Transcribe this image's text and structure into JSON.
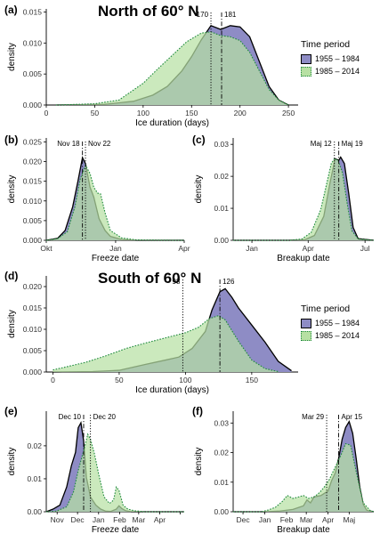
{
  "colors": {
    "period1_fill": "#8e8cc5",
    "period1_line": "#000000",
    "period2_fill": "#b7e0a3",
    "period2_line": "#1e8a3c"
  },
  "legend": {
    "title": "Time period",
    "items": [
      "1955 – 1984",
      "1985 – 2014"
    ]
  },
  "panels": [
    {
      "id": "a",
      "tag": "(a)",
      "region_title": "North of 60° N"
    },
    {
      "id": "b",
      "tag": "(b)"
    },
    {
      "id": "c",
      "tag": "(c)"
    },
    {
      "id": "d",
      "tag": "(d)",
      "region_title": "South of 60° N"
    },
    {
      "id": "e",
      "tag": "(e)"
    },
    {
      "id": "f",
      "tag": "(f)"
    }
  ],
  "chart_data": [
    {
      "id": "a",
      "type": "area",
      "xlabel": "Ice duration (days)",
      "ylabel": "density",
      "xlim": [
        0,
        260
      ],
      "ylim": [
        0,
        0.0155
      ],
      "xticks": [
        0,
        50,
        100,
        150,
        200,
        250
      ],
      "xtick_labels": [
        "0",
        "50",
        "100",
        "150",
        "200",
        "250"
      ],
      "yticks": [
        0,
        0.005,
        0.01,
        0.015
      ],
      "ytick_labels": [
        "0.000",
        "0.005",
        "0.010",
        "0.015"
      ],
      "series": [
        {
          "name": "1955 – 1984",
          "x": [
            10,
            60,
            90,
            110,
            125,
            140,
            150,
            160,
            170,
            180,
            190,
            200,
            210,
            220,
            230,
            240,
            250
          ],
          "y": [
            0,
            0.0001,
            0.0006,
            0.0016,
            0.003,
            0.0055,
            0.0078,
            0.0105,
            0.0128,
            0.0122,
            0.0128,
            0.0126,
            0.011,
            0.007,
            0.003,
            0.0008,
            0
          ]
        },
        {
          "name": "1985 – 2014",
          "x": [
            10,
            50,
            75,
            100,
            115,
            130,
            145,
            160,
            170,
            180,
            190,
            200,
            210,
            220,
            230,
            240,
            250
          ],
          "y": [
            0,
            0.0002,
            0.0008,
            0.0035,
            0.0058,
            0.008,
            0.0102,
            0.0116,
            0.0118,
            0.0112,
            0.011,
            0.0104,
            0.0085,
            0.0055,
            0.0025,
            0.0008,
            0
          ]
        }
      ],
      "vlines": [
        {
          "x": 170,
          "label": "170",
          "style": "dotted"
        },
        {
          "x": 181,
          "label": "181",
          "style": "dashdot"
        }
      ]
    },
    {
      "id": "b",
      "type": "area",
      "xlabel": "Freeze date",
      "ylabel": "density",
      "xlim": [
        0,
        183
      ],
      "ylim": [
        0,
        0.026
      ],
      "xticks": [
        0,
        92,
        183
      ],
      "xtick_labels": [
        "Okt",
        "Jan",
        "Apr"
      ],
      "yticks": [
        0,
        0.005,
        0.01,
        0.015,
        0.02,
        0.025
      ],
      "ytick_labels": [
        "0.000",
        "0.005",
        "0.010",
        "0.015",
        "0.020",
        "0.025"
      ],
      "series": [
        {
          "name": "1955 – 1984",
          "x": [
            0,
            15,
            25,
            35,
            42,
            48,
            52,
            58,
            63,
            70,
            78,
            85,
            100,
            120,
            183
          ],
          "y": [
            0,
            0.0005,
            0.0025,
            0.0085,
            0.015,
            0.021,
            0.0195,
            0.0135,
            0.011,
            0.0055,
            0.0025,
            0.001,
            0.0002,
            0,
            0
          ]
        },
        {
          "name": "1985 – 2014",
          "x": [
            0,
            15,
            28,
            38,
            45,
            52,
            58,
            63,
            68,
            72,
            78,
            85,
            100,
            120,
            183
          ],
          "y": [
            0,
            0.0004,
            0.0022,
            0.0085,
            0.0155,
            0.019,
            0.017,
            0.0135,
            0.012,
            0.0118,
            0.007,
            0.0025,
            0.0006,
            0.0001,
            0
          ]
        }
      ],
      "vlines": [
        {
          "x": 48,
          "label": "Nov 18",
          "style": "dashdot"
        },
        {
          "x": 52,
          "label": "Nov 22",
          "style": "dotted"
        }
      ]
    },
    {
      "id": "c",
      "type": "area",
      "xlabel": "Breakup date",
      "ylabel": "density",
      "xlim": [
        -30,
        195
      ],
      "ylim": [
        0,
        0.032
      ],
      "xticks": [
        0,
        90,
        181
      ],
      "xtick_labels": [
        "Jan",
        "Apr",
        "Jul"
      ],
      "yticks": [
        0,
        0.01,
        0.02,
        0.03
      ],
      "ytick_labels": [
        "0.00",
        "0.01",
        "0.02",
        "0.03"
      ],
      "series": [
        {
          "name": "1955 – 1984",
          "x": [
            -30,
            60,
            85,
            100,
            115,
            125,
            133,
            139,
            142,
            148,
            155,
            162,
            170,
            195
          ],
          "y": [
            0,
            0,
            0.0002,
            0.0015,
            0.0075,
            0.018,
            0.0255,
            0.025,
            0.026,
            0.024,
            0.0145,
            0.004,
            0.0005,
            0
          ]
        },
        {
          "name": "1985 – 2014",
          "x": [
            -30,
            60,
            80,
            95,
            110,
            120,
            127,
            132,
            138,
            145,
            152,
            160,
            170,
            195
          ],
          "y": [
            0,
            0,
            0.0004,
            0.0025,
            0.0095,
            0.018,
            0.024,
            0.0255,
            0.025,
            0.021,
            0.012,
            0.003,
            0.0004,
            0
          ]
        }
      ],
      "vlines": [
        {
          "x": 132,
          "label": "Maj 12",
          "style": "dotted"
        },
        {
          "x": 139,
          "label": "Maj 19",
          "style": "dashdot"
        }
      ]
    },
    {
      "id": "d",
      "type": "area",
      "xlabel": "Ice duration (days)",
      "ylabel": "density",
      "xlim": [
        -5,
        185
      ],
      "ylim": [
        0,
        0.0225
      ],
      "xticks": [
        0,
        50,
        100,
        150
      ],
      "xtick_labels": [
        "0",
        "50",
        "100",
        "150"
      ],
      "yticks": [
        0,
        0.005,
        0.01,
        0.015,
        0.02
      ],
      "ytick_labels": [
        "0.000",
        "0.005",
        "0.010",
        "0.015",
        "0.020"
      ],
      "series": [
        {
          "name": "1955 – 1984",
          "x": [
            0,
            30,
            50,
            70,
            85,
            95,
            105,
            115,
            120,
            126,
            130,
            135,
            140,
            150,
            160,
            170,
            180
          ],
          "y": [
            0,
            0.0001,
            0.0004,
            0.0018,
            0.0028,
            0.0035,
            0.0055,
            0.0095,
            0.0145,
            0.0188,
            0.0195,
            0.0175,
            0.015,
            0.011,
            0.007,
            0.0025,
            0.0003
          ]
        },
        {
          "name": "1985 – 2014",
          "x": [
            0,
            10,
            25,
            40,
            55,
            70,
            85,
            100,
            110,
            118,
            125,
            130,
            140,
            150,
            160,
            170
          ],
          "y": [
            0.0005,
            0.0012,
            0.0023,
            0.0038,
            0.0055,
            0.0068,
            0.008,
            0.0092,
            0.0105,
            0.0125,
            0.0132,
            0.0122,
            0.0072,
            0.0028,
            0.0008,
            0.0001
          ]
        }
      ],
      "vlines": [
        {
          "x": 98,
          "label": "98",
          "style": "dotted"
        },
        {
          "x": 126,
          "label": "126",
          "style": "dashdot"
        }
      ]
    },
    {
      "id": "e",
      "type": "area",
      "xlabel": "Freeze date",
      "ylabel": "density",
      "xlim": [
        15,
        218
      ],
      "ylim": [
        0,
        0.0305
      ],
      "xticks": [
        31,
        61,
        92,
        123,
        151,
        182,
        212
      ],
      "xtick_labels": [
        "Nov",
        "Dec",
        "Jan",
        "Feb",
        "Mar",
        "Apr",
        ""
      ],
      "yticks": [
        0,
        0.01,
        0.02
      ],
      "ytick_labels": [
        "0.00",
        "0.01",
        "0.02"
      ],
      "series": [
        {
          "name": "1955 – 1984",
          "x": [
            15,
            25,
            35,
            45,
            52,
            58,
            62,
            66,
            70,
            74,
            80,
            88,
            95,
            102,
            110,
            118,
            122,
            126,
            132,
            140,
            218
          ],
          "y": [
            0,
            0.0008,
            0.002,
            0.0075,
            0.014,
            0.018,
            0.0255,
            0.027,
            0.0215,
            0.0105,
            0.0045,
            0.002,
            0.0008,
            0.0002,
            0.0001,
            0.0008,
            0.0018,
            0.001,
            0.0003,
            0,
            0
          ]
        },
        {
          "name": "1985 – 2014",
          "x": [
            15,
            30,
            45,
            55,
            62,
            68,
            72,
            76,
            80,
            86,
            92,
            100,
            108,
            114,
            118,
            122,
            128,
            135,
            145,
            160,
            218
          ],
          "y": [
            0,
            0.0002,
            0.0015,
            0.006,
            0.0125,
            0.017,
            0.02,
            0.0235,
            0.022,
            0.0175,
            0.0115,
            0.0045,
            0.0025,
            0.0035,
            0.0075,
            0.0065,
            0.002,
            0.0008,
            0.0003,
            0,
            0
          ]
        }
      ],
      "vlines": [
        {
          "x": 70,
          "label": "Dec 10",
          "style": "dashdot"
        },
        {
          "x": 80,
          "label": "Dec 20",
          "style": "dotted"
        }
      ]
    },
    {
      "id": "f",
      "type": "area",
      "xlabel": "Breakup date",
      "ylabel": "density",
      "xlim": [
        -45,
        155
      ],
      "ylim": [
        0,
        0.034
      ],
      "xticks": [
        -31,
        0,
        31,
        59,
        90,
        120
      ],
      "xtick_labels": [
        "Dec",
        "Jan",
        "Feb",
        "Mar",
        "Apr",
        "Maj"
      ],
      "yticks": [
        0,
        0.01,
        0.02,
        0.03
      ],
      "ytick_labels": [
        "0.00",
        "0.01",
        "0.02",
        "0.03"
      ],
      "series": [
        {
          "name": "1955 – 1984",
          "x": [
            -45,
            0,
            20,
            40,
            55,
            60,
            65,
            70,
            80,
            90,
            95,
            100,
            105,
            110,
            115,
            120,
            125,
            130,
            135,
            140,
            145,
            155
          ],
          "y": [
            0,
            0,
            0.0002,
            0.0008,
            0.002,
            0.004,
            0.003,
            0.005,
            0.0055,
            0.007,
            0.0105,
            0.013,
            0.018,
            0.0245,
            0.0285,
            0.0305,
            0.0265,
            0.018,
            0.0085,
            0.0025,
            0.0005,
            0
          ]
        },
        {
          "name": "1985 – 2014",
          "x": [
            -45,
            -5,
            5,
            15,
            25,
            32,
            40,
            48,
            55,
            62,
            70,
            78,
            85,
            92,
            100,
            108,
            115,
            122,
            130,
            140,
            150,
            155
          ],
          "y": [
            0,
            0,
            0.0006,
            0.0015,
            0.0035,
            0.0055,
            0.0045,
            0.005,
            0.0055,
            0.0045,
            0.005,
            0.0065,
            0.0085,
            0.011,
            0.015,
            0.019,
            0.023,
            0.0225,
            0.0135,
            0.003,
            0.0004,
            0
          ]
        }
      ],
      "vlines": [
        {
          "x": 88,
          "label": "Mar 29",
          "style": "dotted"
        },
        {
          "x": 105,
          "label": "Apr 15",
          "style": "dashdot"
        }
      ]
    }
  ]
}
